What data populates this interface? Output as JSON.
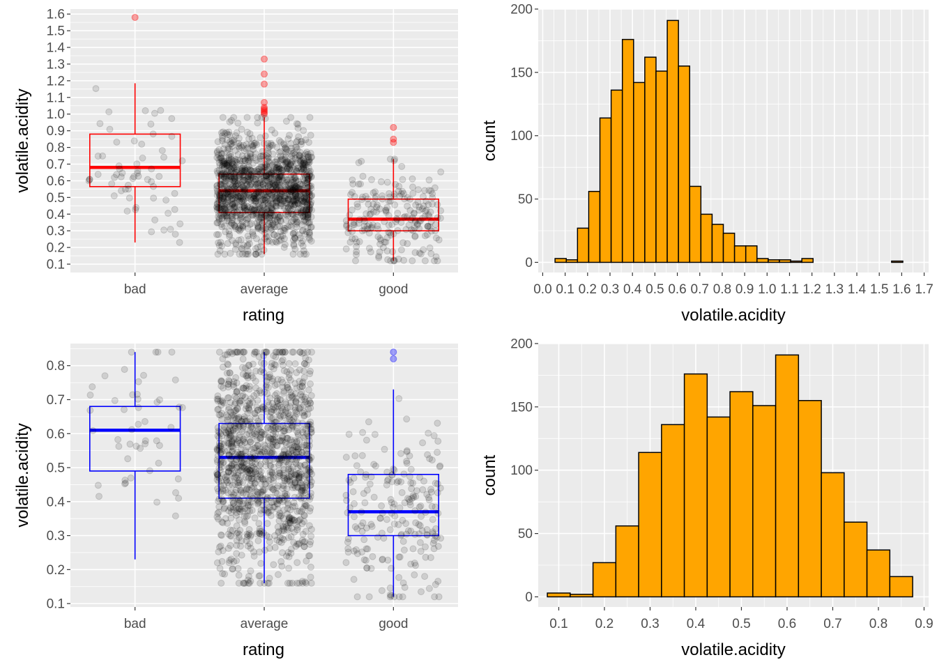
{
  "colors": {
    "panel_bg": "#EBEBEB",
    "grid": "#FFFFFF",
    "tick_text": "#4D4D4D",
    "box_top": "#FF0000",
    "box_bottom": "#0000FF",
    "bar_fill": "#FFA500",
    "bar_stroke": "#000000",
    "jitter": "#000000"
  },
  "chart_data": [
    {
      "id": "top-left",
      "type": "box",
      "xlabel": "rating",
      "ylabel": "volatile.acidity",
      "ylim": [
        0.05,
        1.63
      ],
      "yticks": [
        "0.1",
        "0.2",
        "0.3",
        "0.4",
        "0.5",
        "0.6",
        "0.7",
        "0.8",
        "0.9",
        "1.0",
        "1.1",
        "1.2",
        "1.3",
        "1.4",
        "1.5",
        "1.6"
      ],
      "categories": [
        "bad",
        "average",
        "good"
      ],
      "boxes": [
        {
          "q1": 0.565,
          "median": 0.68,
          "q3": 0.88,
          "lower": 0.23,
          "upper": 1.185,
          "outliers": [
            1.58
          ],
          "n_points": 63
        },
        {
          "q1": 0.41,
          "median": 0.54,
          "q3": 0.64,
          "lower": 0.16,
          "upper": 0.98,
          "outliers": [
            1.0,
            1.01,
            1.02,
            1.03,
            1.04,
            1.07,
            1.18,
            1.24,
            1.33
          ],
          "n_points": 1319
        },
        {
          "q1": 0.3,
          "median": 0.37,
          "q3": 0.49,
          "lower": 0.12,
          "upper": 0.73,
          "outliers": [
            0.83,
            0.85,
            0.92
          ],
          "n_points": 217
        }
      ],
      "grid": true
    },
    {
      "id": "top-right",
      "type": "histogram",
      "xlabel": "volatile.acidity",
      "ylabel": "count",
      "xlim": [
        -0.02,
        1.72
      ],
      "ylim": [
        -8,
        200
      ],
      "xticks": [
        "0.0",
        "0.1",
        "0.2",
        "0.3",
        "0.4",
        "0.5",
        "0.6",
        "0.7",
        "0.8",
        "0.9",
        "1.0",
        "1.1",
        "1.2",
        "1.3",
        "1.4",
        "1.5",
        "1.6",
        "1.7"
      ],
      "yticks": [
        "0",
        "50",
        "100",
        "150",
        "200"
      ],
      "bin_width": 0.05,
      "bin_start": 0.055,
      "counts": [
        3,
        2,
        27,
        56,
        114,
        136,
        176,
        142,
        162,
        151,
        191,
        155,
        60,
        38,
        30,
        23,
        13,
        13,
        3,
        2,
        2,
        1,
        3,
        0,
        0,
        0,
        0,
        0,
        0,
        0,
        1
      ],
      "grid": true
    },
    {
      "id": "bottom-left",
      "type": "box",
      "xlabel": "rating",
      "ylabel": "volatile.acidity",
      "ylim": [
        0.09,
        0.865
      ],
      "yticks": [
        "0.1",
        "0.2",
        "0.3",
        "0.4",
        "0.5",
        "0.6",
        "0.7",
        "0.8"
      ],
      "categories": [
        "bad",
        "average",
        "good"
      ],
      "boxes": [
        {
          "q1": 0.49,
          "median": 0.61,
          "q3": 0.68,
          "lower": 0.23,
          "upper": 0.84,
          "outliers": [],
          "n_points": 50
        },
        {
          "q1": 0.41,
          "median": 0.53,
          "q3": 0.63,
          "lower": 0.16,
          "upper": 0.84,
          "outliers": [],
          "n_points": 1250
        },
        {
          "q1": 0.3,
          "median": 0.37,
          "q3": 0.48,
          "lower": 0.12,
          "upper": 0.73,
          "outliers": [
            0.82,
            0.84
          ],
          "n_points": 210
        }
      ],
      "grid": true
    },
    {
      "id": "bottom-right",
      "type": "histogram",
      "xlabel": "volatile.acidity",
      "ylabel": "count",
      "xlim": [
        0.055,
        0.91
      ],
      "ylim": [
        -8,
        200
      ],
      "xticks": [
        "0.1",
        "0.2",
        "0.3",
        "0.4",
        "0.5",
        "0.6",
        "0.7",
        "0.8",
        "0.9"
      ],
      "yticks": [
        "0",
        "50",
        "100",
        "150",
        "200"
      ],
      "bin_width": 0.05,
      "bin_start": 0.075,
      "counts": [
        3,
        2,
        27,
        56,
        114,
        136,
        176,
        142,
        162,
        151,
        191,
        155,
        98,
        59,
        37,
        16
      ],
      "grid": true
    }
  ]
}
